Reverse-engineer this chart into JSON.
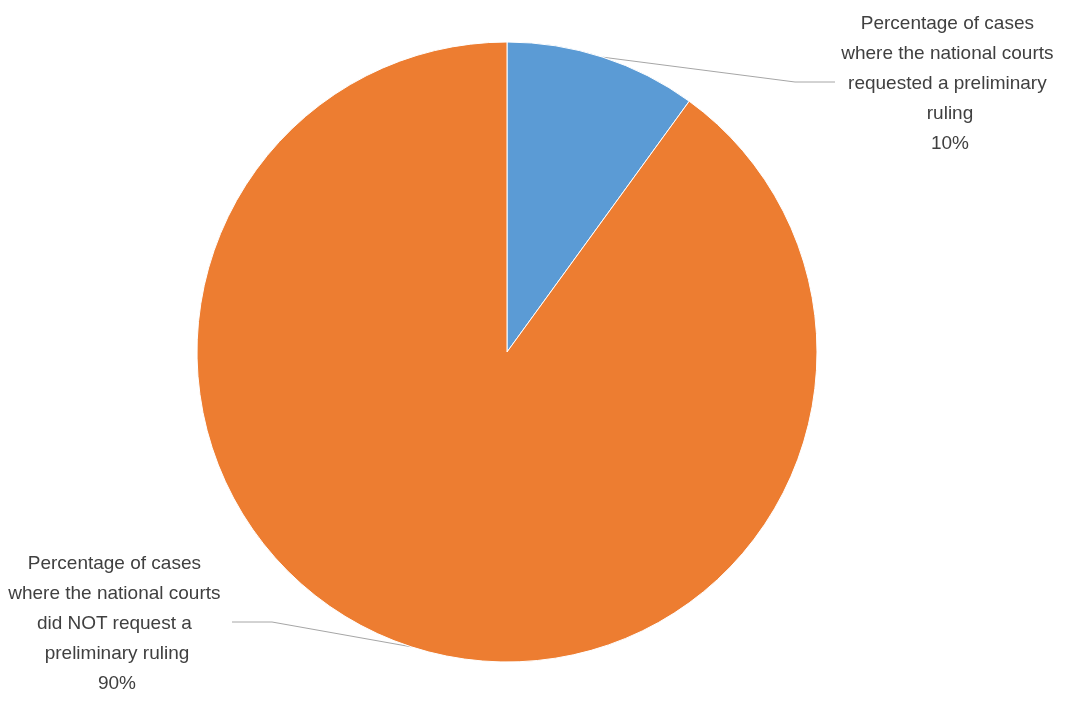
{
  "chart_data": {
    "type": "pie",
    "categories": [
      "Percentage of cases where the national courts requested a preliminary ruling",
      "Percentage of cases where the national courts did NOT request a preliminary ruling"
    ],
    "values": [
      10,
      90
    ],
    "colors": [
      "#5b9bd5",
      "#ed7d31"
    ],
    "value_labels": [
      "10%",
      "90%"
    ]
  }
}
